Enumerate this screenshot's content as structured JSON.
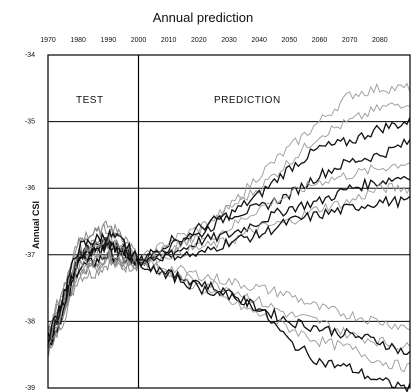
{
  "chart_data": {
    "type": "line",
    "title": "Annual prediction",
    "xlabel": "",
    "ylabel": "Annual CSI",
    "x_ticks": [
      "1970",
      "1980",
      "1990",
      "2000",
      "2010",
      "2020",
      "2030",
      "2040",
      "2050",
      "2060",
      "2070",
      "2080"
    ],
    "y_ticks": [
      "-34",
      "-35",
      "-36",
      "-37",
      "-38",
      "-39"
    ],
    "xlim": [
      1970,
      2090
    ],
    "ylim": [
      -39,
      -34
    ],
    "y_inverted": true,
    "grid": "horizontal",
    "region_labels": [
      {
        "name": "test",
        "text": "TEST"
      },
      {
        "name": "prediction",
        "text": "PREDICTION"
      }
    ],
    "split_x": 2000,
    "test_series_summary": {
      "x": [
        1970,
        1975,
        1980,
        1985,
        1990,
        1995,
        2000
      ],
      "y_mean": [
        -38.3,
        -37.7,
        -37.0,
        -36.9,
        -36.8,
        -36.9,
        -37.1
      ],
      "y_spread": [
        0.2,
        0.3,
        0.35,
        0.4,
        0.35,
        0.3,
        0.05
      ]
    },
    "prediction_series": [
      {
        "color": "gray",
        "x": [
          2000,
          2010,
          2020,
          2030,
          2040,
          2050,
          2060,
          2070,
          2080,
          2090
        ],
        "y": [
          -37.1,
          -36.9,
          -36.7,
          -36.3,
          -35.8,
          -35.4,
          -35.0,
          -34.6,
          -34.5,
          -34.5
        ]
      },
      {
        "color": "gray",
        "x": [
          2000,
          2010,
          2020,
          2030,
          2040,
          2050,
          2060,
          2070,
          2080,
          2090
        ],
        "y": [
          -37.1,
          -36.8,
          -36.6,
          -36.3,
          -36.0,
          -35.6,
          -35.2,
          -35.0,
          -34.8,
          -34.7
        ]
      },
      {
        "color": "black",
        "x": [
          2000,
          2010,
          2020,
          2030,
          2040,
          2050,
          2060,
          2070,
          2080,
          2090
        ],
        "y": [
          -37.1,
          -36.9,
          -36.6,
          -36.4,
          -36.1,
          -35.7,
          -35.4,
          -35.3,
          -35.1,
          -35.0
        ]
      },
      {
        "color": "black",
        "x": [
          2000,
          2010,
          2020,
          2030,
          2040,
          2050,
          2060,
          2070,
          2080,
          2090
        ],
        "y": [
          -37.1,
          -36.8,
          -36.7,
          -36.4,
          -36.3,
          -36.1,
          -35.8,
          -35.6,
          -35.5,
          -35.3
        ]
      },
      {
        "color": "gray",
        "x": [
          2000,
          2010,
          2020,
          2030,
          2040,
          2050,
          2060,
          2070,
          2080,
          2090
        ],
        "y": [
          -37.1,
          -36.9,
          -36.8,
          -36.6,
          -36.3,
          -36.1,
          -35.9,
          -35.8,
          -35.7,
          -35.6
        ]
      },
      {
        "color": "black",
        "x": [
          2000,
          2010,
          2020,
          2030,
          2040,
          2050,
          2060,
          2070,
          2080,
          2090
        ],
        "y": [
          -37.1,
          -37.0,
          -36.8,
          -36.7,
          -36.5,
          -36.3,
          -36.2,
          -36.0,
          -35.9,
          -35.8
        ]
      },
      {
        "color": "gray",
        "x": [
          2000,
          2010,
          2020,
          2030,
          2040,
          2050,
          2060,
          2070,
          2080,
          2090
        ],
        "y": [
          -37.1,
          -37.0,
          -36.9,
          -36.8,
          -36.6,
          -36.5,
          -36.3,
          -36.2,
          -36.0,
          -36.0
        ]
      },
      {
        "color": "black",
        "x": [
          2000,
          2010,
          2020,
          2030,
          2040,
          2050,
          2060,
          2070,
          2080,
          2090
        ],
        "y": [
          -37.1,
          -37.0,
          -37.0,
          -36.8,
          -36.7,
          -36.5,
          -36.4,
          -36.3,
          -36.2,
          -36.2
        ]
      },
      {
        "color": "gray",
        "x": [
          2000,
          2010,
          2020,
          2030,
          2040,
          2050,
          2060,
          2070,
          2080,
          2090
        ],
        "y": [
          -37.1,
          -37.2,
          -37.3,
          -37.4,
          -37.5,
          -37.6,
          -37.8,
          -37.9,
          -38.0,
          -38.1
        ]
      },
      {
        "color": "gray",
        "x": [
          2000,
          2010,
          2020,
          2030,
          2040,
          2050,
          2060,
          2070,
          2080,
          2090
        ],
        "y": [
          -37.1,
          -37.3,
          -37.4,
          -37.5,
          -37.7,
          -37.9,
          -38.0,
          -38.2,
          -38.3,
          -38.4
        ]
      },
      {
        "color": "black",
        "x": [
          2000,
          2010,
          2020,
          2030,
          2040,
          2050,
          2060,
          2070,
          2080,
          2090
        ],
        "y": [
          -37.1,
          -37.3,
          -37.4,
          -37.6,
          -37.8,
          -38.0,
          -38.1,
          -38.2,
          -38.3,
          -38.5
        ]
      },
      {
        "color": "gray",
        "x": [
          2000,
          2010,
          2020,
          2030,
          2040,
          2050,
          2060,
          2070,
          2080,
          2090
        ],
        "y": [
          -37.1,
          -37.3,
          -37.5,
          -37.7,
          -37.9,
          -38.1,
          -38.3,
          -38.4,
          -38.6,
          -38.7
        ]
      },
      {
        "color": "black",
        "x": [
          2000,
          2010,
          2020,
          2030,
          2040,
          2050,
          2060,
          2070,
          2080,
          2090
        ],
        "y": [
          -37.1,
          -37.3,
          -37.5,
          -37.6,
          -37.8,
          -38.3,
          -38.6,
          -38.7,
          -38.9,
          -39.0
        ]
      }
    ]
  }
}
